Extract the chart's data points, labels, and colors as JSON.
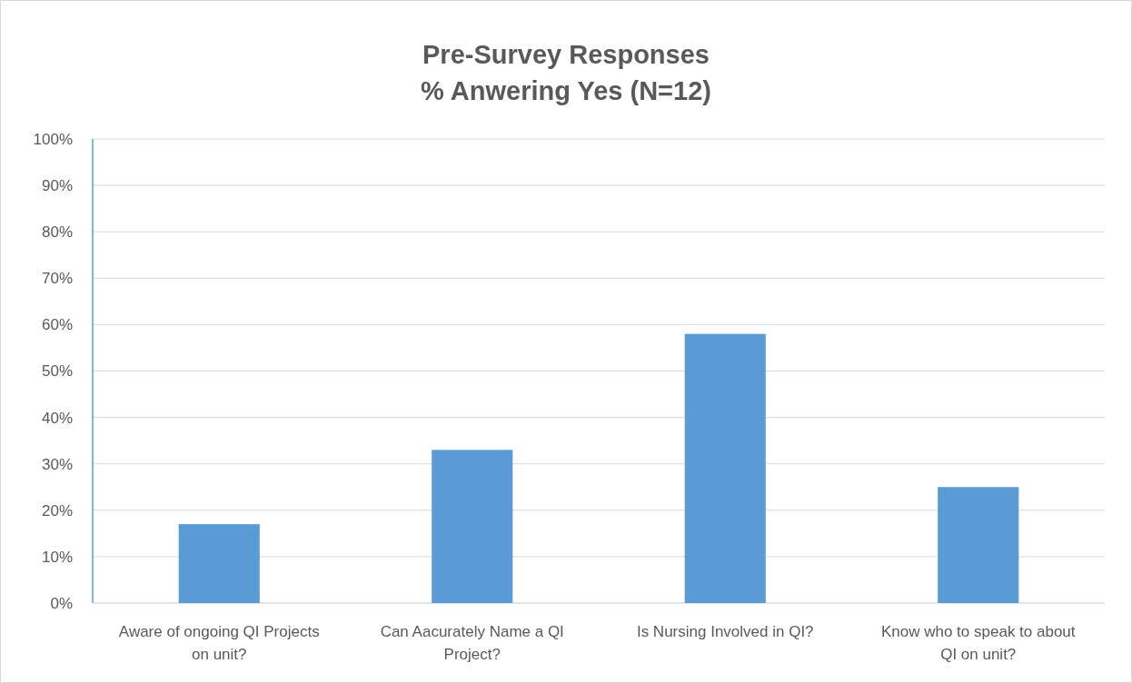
{
  "chart_data": {
    "type": "bar",
    "title": "Pre-Survey Responses\n% Anwering Yes (N=12)",
    "categories": [
      "Aware of ongoing QI Projects on unit?",
      "Can Aacurately Name a QI Project?",
      "Is Nursing Involved in QI?",
      "Know who to speak to about QI on unit?"
    ],
    "values": [
      17,
      33,
      58,
      25
    ],
    "color": "#5b9bd5",
    "ylim": [
      0,
      100
    ],
    "yticks": [
      {
        "value": 0,
        "label": "0%"
      },
      {
        "value": 10,
        "label": "10%"
      },
      {
        "value": 20,
        "label": "20%"
      },
      {
        "value": 30,
        "label": "30%"
      },
      {
        "value": 40,
        "label": "40%"
      },
      {
        "value": 50,
        "label": "50%"
      },
      {
        "value": 60,
        "label": "60%"
      },
      {
        "value": 70,
        "label": "70%"
      },
      {
        "value": 80,
        "label": "80%"
      },
      {
        "value": 90,
        "label": "90%"
      },
      {
        "value": 100,
        "label": "100%"
      }
    ],
    "grid": "y"
  }
}
